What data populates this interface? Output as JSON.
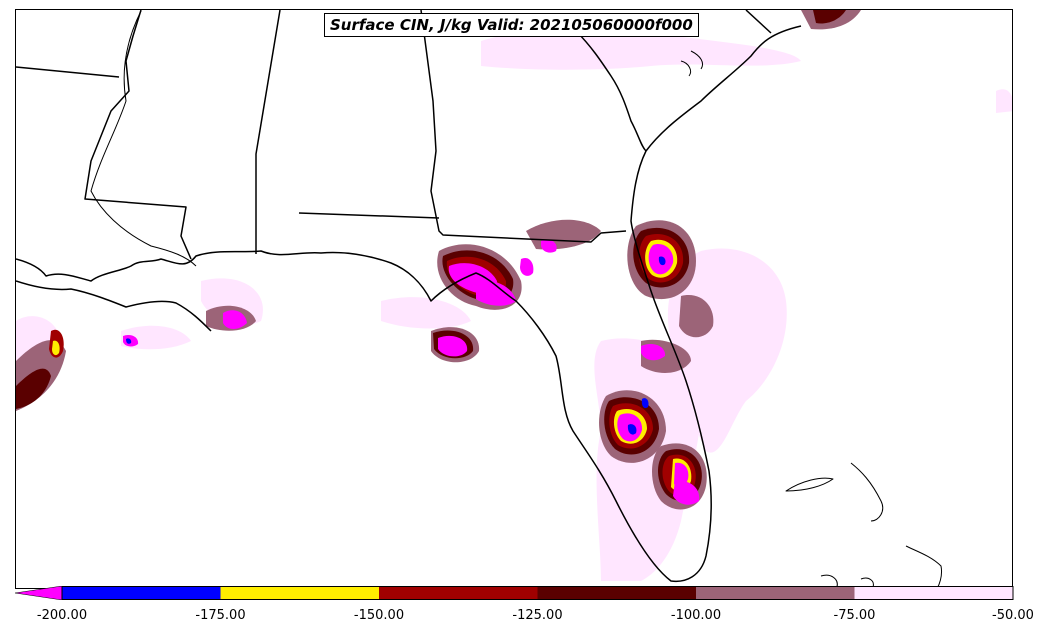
{
  "title": "Surface CIN, J/kg Valid: 202105060000f000",
  "colorbar": {
    "extend": "min",
    "extend_color": "#ff00ff",
    "bins": [
      {
        "from": -200,
        "to": -175,
        "color": "#0000ff"
      },
      {
        "from": -175,
        "to": -150,
        "color": "#ffee00"
      },
      {
        "from": -150,
        "to": -125,
        "color": "#a00000"
      },
      {
        "from": -125,
        "to": -100,
        "color": "#5a0000"
      },
      {
        "from": -100,
        "to": -75,
        "color": "#9c6478"
      },
      {
        "from": -75,
        "to": -50,
        "color": "#ffe6ff"
      }
    ],
    "tick_labels": [
      "-200.00",
      "-175.00",
      "-150.00",
      "-125.00",
      "-100.00",
      "-75.00",
      "-50.00"
    ]
  },
  "map": {
    "region": "southeastern-united-states",
    "field": "surface-cin",
    "units": "J/kg"
  }
}
